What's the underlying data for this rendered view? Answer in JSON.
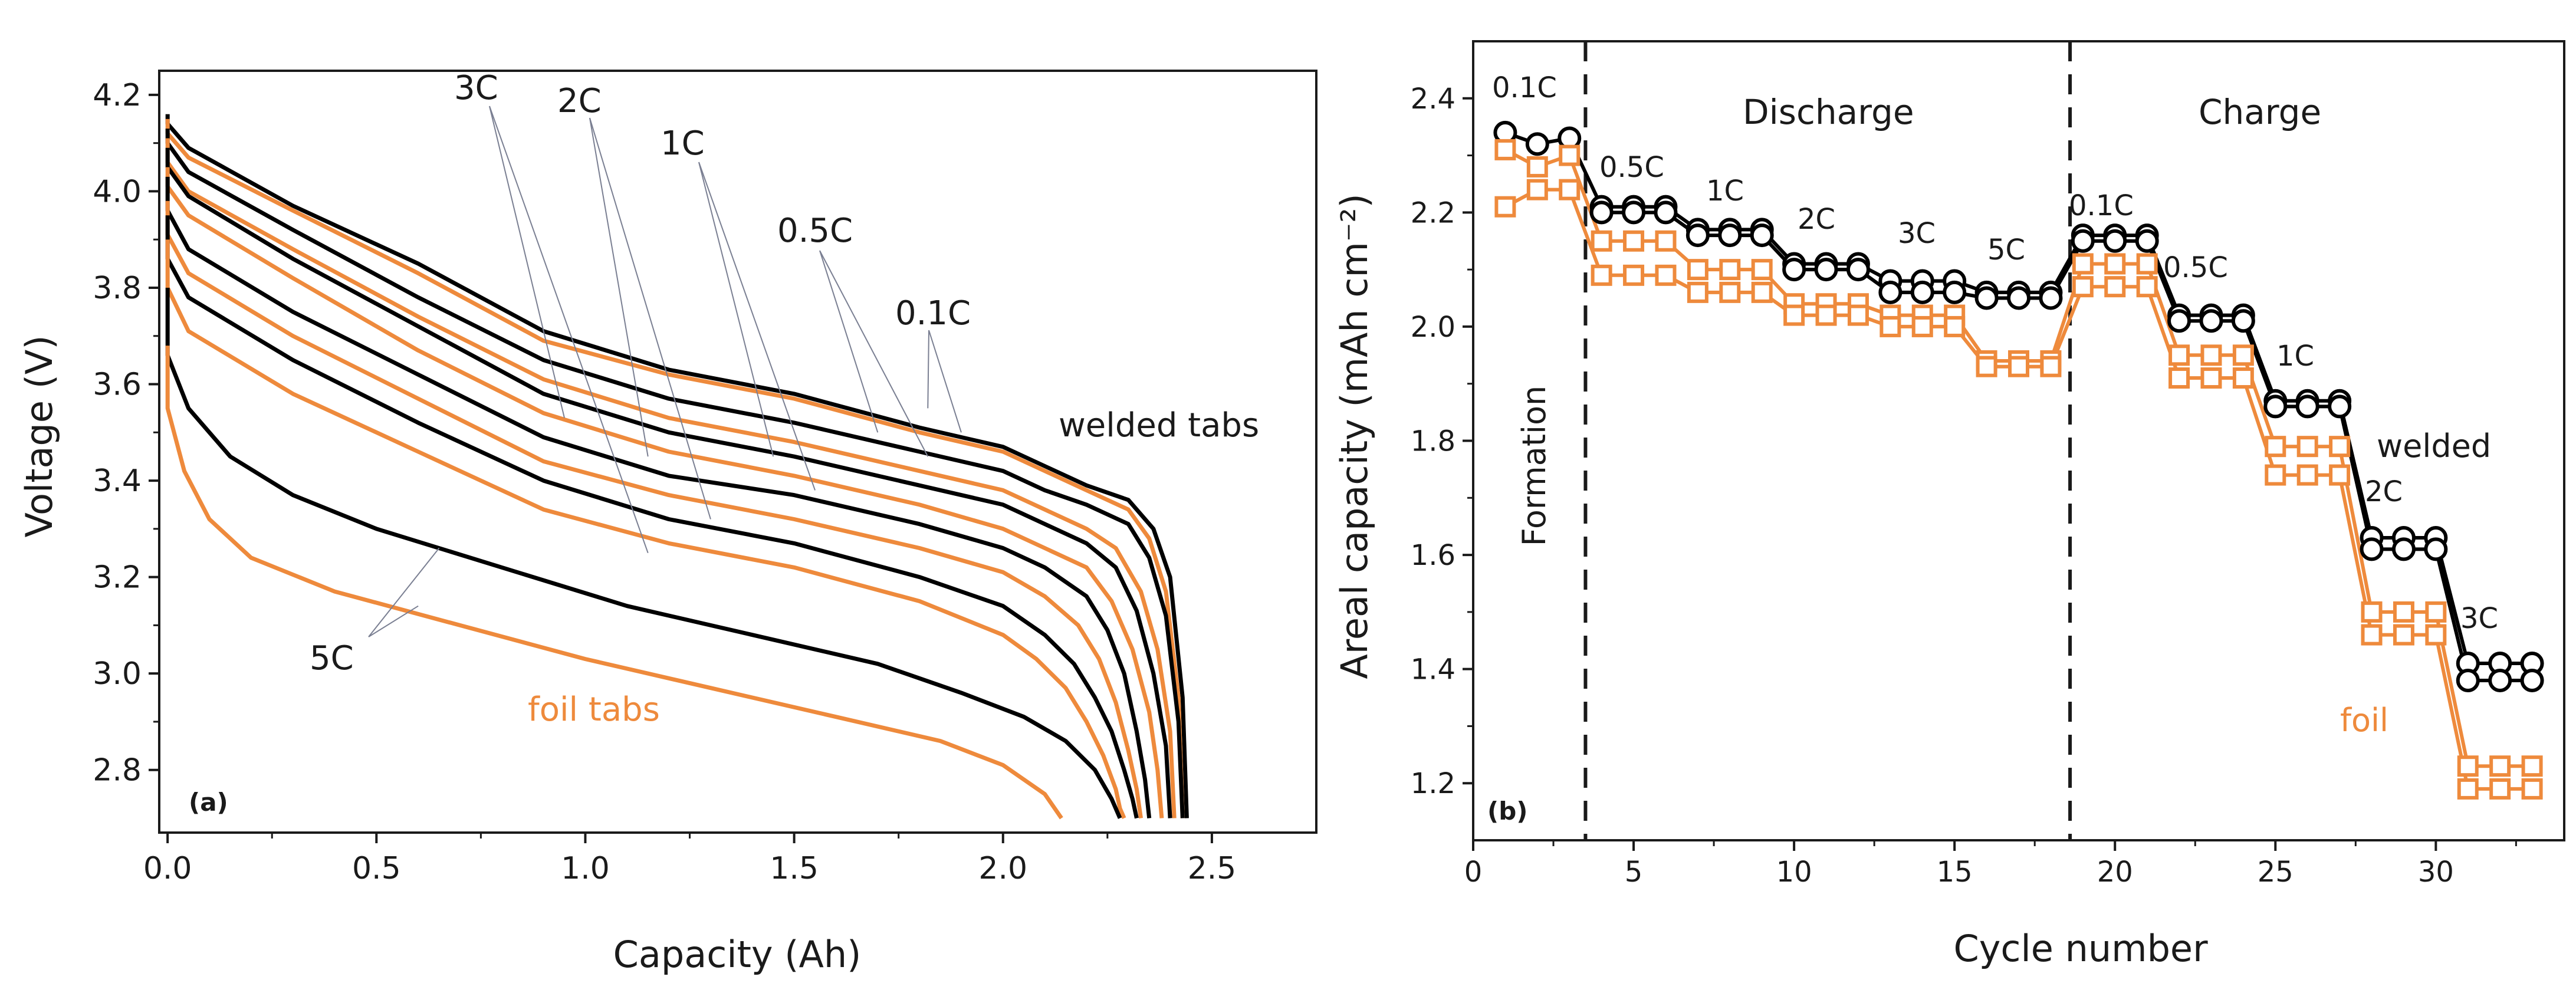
{
  "colors": {
    "welded": "#000000",
    "foil": "#ee8a3c",
    "axis": "#1a1a1a"
  },
  "chart_data": [
    {
      "panel": "(a)",
      "type": "line",
      "xlabel": "Capacity (Ah)",
      "ylabel": "Voltage (V)",
      "xlim": [
        -0.02,
        2.75
      ],
      "ylim": [
        2.67,
        4.25
      ],
      "xticks": [
        "0.0",
        "0.5",
        "1.0",
        "1.5",
        "2.0",
        "2.5"
      ],
      "yticks": [
        "2.8",
        "3.0",
        "3.2",
        "3.4",
        "3.6",
        "3.8",
        "4.0",
        "4.2"
      ],
      "grid": false,
      "annotations": {
        "c3": "3C",
        "c2": "2C",
        "c1": "1C",
        "c05": "0.5C",
        "c01": "0.1C",
        "c5": "5C",
        "welded": "welded tabs",
        "foil": "foil tabs"
      },
      "series": [
        {
          "group": "welded",
          "rate": "0.1C",
          "x": [
            0.0,
            0.0,
            0.05,
            0.3,
            0.6,
            0.9,
            1.2,
            1.5,
            1.8,
            2.0,
            2.1,
            2.2,
            2.3,
            2.36,
            2.4,
            2.43,
            2.44
          ],
          "y": [
            4.16,
            4.14,
            4.09,
            3.97,
            3.85,
            3.71,
            3.63,
            3.58,
            3.51,
            3.47,
            3.43,
            3.39,
            3.36,
            3.3,
            3.2,
            2.95,
            2.7
          ]
        },
        {
          "group": "foil",
          "rate": "0.1C",
          "x": [
            0.0,
            0.0,
            0.05,
            0.3,
            0.6,
            0.9,
            1.2,
            1.5,
            1.8,
            2.0,
            2.1,
            2.2,
            2.3,
            2.35,
            2.39,
            2.42,
            2.43
          ],
          "y": [
            4.15,
            4.12,
            4.07,
            3.96,
            3.83,
            3.69,
            3.62,
            3.57,
            3.5,
            3.46,
            3.42,
            3.38,
            3.34,
            3.28,
            3.17,
            2.95,
            2.7
          ]
        },
        {
          "group": "welded",
          "rate": "0.5C",
          "x": [
            0.0,
            0.0,
            0.05,
            0.3,
            0.6,
            0.9,
            1.2,
            1.5,
            1.8,
            2.0,
            2.1,
            2.2,
            2.3,
            2.35,
            2.39,
            2.42,
            2.43
          ],
          "y": [
            4.13,
            4.1,
            4.04,
            3.92,
            3.78,
            3.65,
            3.57,
            3.52,
            3.46,
            3.42,
            3.38,
            3.35,
            3.31,
            3.24,
            3.12,
            2.9,
            2.7
          ]
        },
        {
          "group": "foil",
          "rate": "0.5C",
          "x": [
            0.0,
            0.0,
            0.05,
            0.3,
            0.6,
            0.9,
            1.2,
            1.5,
            1.8,
            2.0,
            2.1,
            2.2,
            2.27,
            2.33,
            2.37,
            2.4,
            2.41
          ],
          "y": [
            4.11,
            4.06,
            4.0,
            3.88,
            3.74,
            3.61,
            3.53,
            3.48,
            3.42,
            3.38,
            3.34,
            3.3,
            3.26,
            3.17,
            3.05,
            2.88,
            2.7
          ]
        },
        {
          "group": "welded",
          "rate": "1C",
          "x": [
            0.0,
            0.0,
            0.05,
            0.3,
            0.6,
            0.9,
            1.2,
            1.5,
            1.8,
            2.0,
            2.1,
            2.2,
            2.27,
            2.32,
            2.36,
            2.39,
            2.4
          ],
          "y": [
            4.09,
            4.05,
            3.99,
            3.86,
            3.72,
            3.58,
            3.5,
            3.45,
            3.39,
            3.35,
            3.31,
            3.27,
            3.22,
            3.13,
            3.0,
            2.85,
            2.7
          ]
        },
        {
          "group": "foil",
          "rate": "1C",
          "x": [
            0.0,
            0.0,
            0.05,
            0.3,
            0.6,
            0.9,
            1.2,
            1.5,
            1.8,
            2.0,
            2.1,
            2.2,
            2.26,
            2.31,
            2.35,
            2.37,
            2.38
          ],
          "y": [
            4.05,
            4.01,
            3.95,
            3.82,
            3.67,
            3.54,
            3.46,
            3.41,
            3.35,
            3.3,
            3.26,
            3.22,
            3.15,
            3.05,
            2.92,
            2.8,
            2.7
          ]
        },
        {
          "group": "welded",
          "rate": "2C",
          "x": [
            0.0,
            0.0,
            0.05,
            0.3,
            0.6,
            0.9,
            1.2,
            1.5,
            1.8,
            2.0,
            2.1,
            2.2,
            2.25,
            2.29,
            2.32,
            2.34,
            2.35
          ],
          "y": [
            4.03,
            3.96,
            3.88,
            3.75,
            3.62,
            3.49,
            3.41,
            3.37,
            3.31,
            3.26,
            3.22,
            3.16,
            3.09,
            3.0,
            2.88,
            2.78,
            2.7
          ]
        },
        {
          "group": "foil",
          "rate": "2C",
          "x": [
            0.0,
            0.0,
            0.05,
            0.3,
            0.6,
            0.9,
            1.2,
            1.5,
            1.8,
            2.0,
            2.1,
            2.18,
            2.23,
            2.27,
            2.3,
            2.32,
            2.33
          ],
          "y": [
            3.98,
            3.91,
            3.83,
            3.7,
            3.57,
            3.44,
            3.37,
            3.32,
            3.26,
            3.21,
            3.16,
            3.1,
            3.03,
            2.94,
            2.84,
            2.76,
            2.7
          ]
        },
        {
          "group": "welded",
          "rate": "3C",
          "x": [
            0.0,
            0.0,
            0.05,
            0.3,
            0.6,
            0.9,
            1.2,
            1.5,
            1.8,
            2.0,
            2.1,
            2.17,
            2.22,
            2.26,
            2.29,
            2.31,
            2.32
          ],
          "y": [
            3.95,
            3.86,
            3.78,
            3.65,
            3.52,
            3.4,
            3.32,
            3.27,
            3.2,
            3.14,
            3.08,
            3.02,
            2.95,
            2.88,
            2.8,
            2.74,
            2.7
          ]
        },
        {
          "group": "foil",
          "rate": "3C",
          "x": [
            0.0,
            0.0,
            0.05,
            0.3,
            0.6,
            0.9,
            1.2,
            1.5,
            1.8,
            2.0,
            2.08,
            2.15,
            2.2,
            2.24,
            2.27,
            2.28,
            2.29
          ],
          "y": [
            3.9,
            3.8,
            3.71,
            3.58,
            3.46,
            3.34,
            3.27,
            3.22,
            3.15,
            3.08,
            3.03,
            2.97,
            2.9,
            2.83,
            2.76,
            2.72,
            2.7
          ]
        },
        {
          "group": "welded",
          "rate": "5C",
          "x": [
            0.0,
            0.0,
            0.05,
            0.15,
            0.3,
            0.5,
            0.8,
            1.1,
            1.4,
            1.7,
            1.9,
            2.05,
            2.15,
            2.22,
            2.26,
            2.28
          ],
          "y": [
            3.8,
            3.66,
            3.55,
            3.45,
            3.37,
            3.3,
            3.22,
            3.14,
            3.08,
            3.02,
            2.96,
            2.91,
            2.86,
            2.8,
            2.74,
            2.7
          ]
        },
        {
          "group": "foil",
          "rate": "5C",
          "x": [
            0.0,
            0.0,
            0.04,
            0.1,
            0.2,
            0.4,
            0.7,
            1.0,
            1.3,
            1.6,
            1.85,
            2.0,
            2.1,
            2.14
          ],
          "y": [
            3.68,
            3.55,
            3.42,
            3.32,
            3.24,
            3.17,
            3.1,
            3.03,
            2.97,
            2.91,
            2.86,
            2.81,
            2.75,
            2.7
          ]
        }
      ]
    },
    {
      "panel": "(b)",
      "type": "scatter",
      "xlabel": "Cycle number",
      "ylabel": "Areal capacity (mAh cm⁻²)",
      "xlim": [
        0,
        34
      ],
      "ylim": [
        1.1,
        2.5
      ],
      "xticks": [
        "0",
        "5",
        "10",
        "15",
        "20",
        "25",
        "30"
      ],
      "yticks": [
        "1.2",
        "1.4",
        "1.6",
        "1.8",
        "2.0",
        "2.2",
        "2.4"
      ],
      "grid": false,
      "section_labels": {
        "formation": "Formation",
        "discharge": "Discharge",
        "charge": "Charge"
      },
      "dividers_x": [
        3.5,
        18.6
      ],
      "rate_labels": {
        "r01a": "0.1C",
        "r05a": "0.5C",
        "r1a": "1C",
        "r2a": "2C",
        "r3a": "3C",
        "r5a": "5C",
        "r01b": "0.1C",
        "r05b": "0.5C",
        "r1b": "1C",
        "r2b": "2C",
        "r3b": "3C"
      },
      "series_labels": {
        "welded": "welded",
        "foil": "foil"
      },
      "series": [
        {
          "group": "welded",
          "marker": "circle",
          "x": [
            1,
            2,
            3,
            4,
            5,
            6,
            7,
            8,
            9,
            10,
            11,
            12,
            13,
            14,
            15,
            16,
            17,
            18,
            19,
            20,
            21,
            22,
            23,
            24,
            25,
            26,
            27,
            28,
            29,
            30,
            31,
            32,
            33
          ],
          "y": [
            2.34,
            2.32,
            2.33,
            2.21,
            2.21,
            2.21,
            2.17,
            2.17,
            2.17,
            2.11,
            2.11,
            2.11,
            2.08,
            2.08,
            2.08,
            2.06,
            2.06,
            2.06,
            2.16,
            2.16,
            2.16,
            2.02,
            2.02,
            2.02,
            1.87,
            1.87,
            1.87,
            1.63,
            1.63,
            1.63,
            1.41,
            1.41,
            1.41
          ],
          "y_second": [
            null,
            null,
            null,
            2.2,
            2.2,
            2.2,
            2.16,
            2.16,
            2.16,
            2.1,
            2.1,
            2.1,
            2.06,
            2.06,
            2.06,
            2.05,
            2.05,
            2.05,
            2.15,
            2.15,
            2.15,
            2.01,
            2.01,
            2.01,
            1.86,
            1.86,
            1.86,
            1.61,
            1.61,
            1.61,
            1.38,
            1.38,
            1.38
          ]
        },
        {
          "group": "foil",
          "marker": "square",
          "x": [
            1,
            2,
            3,
            4,
            5,
            6,
            7,
            8,
            9,
            10,
            11,
            12,
            13,
            14,
            15,
            16,
            17,
            18,
            19,
            20,
            21,
            22,
            23,
            24,
            25,
            26,
            27,
            28,
            29,
            30,
            31,
            32,
            33
          ],
          "y": [
            2.31,
            2.28,
            2.3,
            2.15,
            2.15,
            2.15,
            2.1,
            2.1,
            2.1,
            2.04,
            2.04,
            2.04,
            2.02,
            2.02,
            2.02,
            1.94,
            1.94,
            1.94,
            2.11,
            2.11,
            2.11,
            1.95,
            1.95,
            1.95,
            1.79,
            1.79,
            1.79,
            1.5,
            1.5,
            1.5,
            1.23,
            1.23,
            1.23
          ],
          "y_second": [
            2.21,
            2.24,
            2.24,
            2.09,
            2.09,
            2.09,
            2.06,
            2.06,
            2.06,
            2.02,
            2.02,
            2.02,
            2.0,
            2.0,
            2.0,
            1.93,
            1.93,
            1.93,
            2.07,
            2.07,
            2.07,
            1.91,
            1.91,
            1.91,
            1.74,
            1.74,
            1.74,
            1.46,
            1.46,
            1.46,
            1.19,
            1.19,
            1.19
          ]
        }
      ]
    }
  ]
}
